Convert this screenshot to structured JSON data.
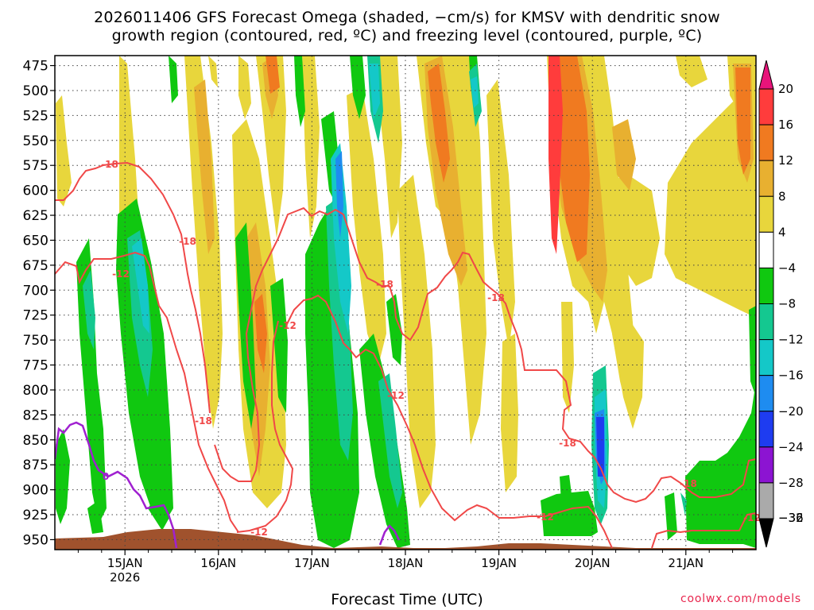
{
  "title_line1": "2026011406 GFS Forecast Omega (shaded, −cm/s) for KMSV with dendritic snow",
  "title_line2": "growth region (contoured, red, ºC) and freezing level (contoured, purple, ºC)",
  "credit": "coolwx.com/models",
  "chart_data": {
    "type": "heatmap",
    "title": "2026011406 GFS Forecast Omega (shaded, −cm/s) for KMSV with dendritic snow growth region (contoured, red, ºC) and freezing level (contoured, purple, ºC)",
    "xlabel": "Forecast Time (UTC)",
    "ylabel": "",
    "y_ticks": [
      475,
      500,
      525,
      550,
      575,
      600,
      625,
      650,
      675,
      700,
      725,
      750,
      775,
      800,
      825,
      850,
      875,
      900,
      925,
      950
    ],
    "ylim": [
      960,
      465
    ],
    "x_ticks": [
      {
        "label": "15JAN",
        "sub": "2026",
        "hour": 18
      },
      {
        "label": "16JAN",
        "sub": "",
        "hour": 42
      },
      {
        "label": "17JAN",
        "sub": "",
        "hour": 66
      },
      {
        "label": "18JAN",
        "sub": "",
        "hour": 90
      },
      {
        "label": "19JAN",
        "sub": "",
        "hour": 114
      },
      {
        "label": "20JAN",
        "sub": "",
        "hour": 138
      },
      {
        "label": "21JAN",
        "sub": "",
        "hour": 162
      }
    ],
    "xlim_hours": [
      0,
      180
    ],
    "colorbar": {
      "labels": [
        "20",
        "16",
        "12",
        "8",
        "4",
        "−4",
        "−8",
        "−12",
        "−16",
        "−20",
        "−24",
        "−28",
        "−32",
        "−36"
      ],
      "colors": [
        "#ff3c3c",
        "#f07a20",
        "#e8b030",
        "#e8d63c",
        "#ffffff",
        "#10c810",
        "#14c890",
        "#14c8c8",
        "#1e8cf0",
        "#1e3cf0",
        "#8c14d2",
        "#aaaaaa"
      ],
      "top_color": "#e8147a",
      "bottom_color": "#000000"
    },
    "contour_labels": {
      "dgz": [
        "-18",
        "-18",
        "-12",
        "-18",
        "-12",
        "-12",
        "-18",
        "-12",
        "-18",
        "-12",
        "-18",
        "-18",
        "-12"
      ],
      "freezing": [
        "0"
      ]
    }
  }
}
